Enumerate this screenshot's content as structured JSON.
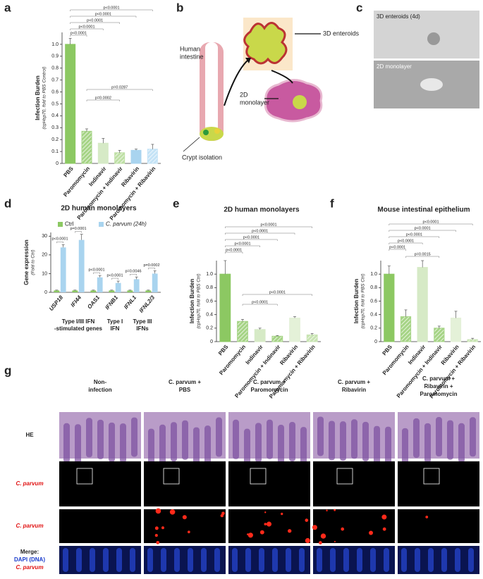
{
  "panel_letters": [
    "a",
    "b",
    "c",
    "d",
    "e",
    "f",
    "g"
  ],
  "chart_data": [
    {
      "type": "bar",
      "ylabel": "Infection Burden",
      "ylabel_sub": "(cpHsp70, fold to PBS Control)",
      "categories": [
        "PBS",
        "Paromomycin",
        "Indinavir",
        "Paromomycin + Indinavir",
        "Ribavirin",
        "Paromomycin + Ribavirin"
      ],
      "values": [
        1.0,
        0.27,
        0.17,
        0.09,
        0.11,
        0.12
      ],
      "errors": [
        0.05,
        0.02,
        0.04,
        0.02,
        0.01,
        0.04
      ],
      "colors": [
        "#8cc862",
        "#a6d486",
        "#d6eac6",
        "#bfe0a6",
        "#a9d4ef",
        "#c4e3f6"
      ],
      "ylim": [
        0,
        1.1
      ],
      "yticks": [
        0,
        0.1,
        0.2,
        0.3,
        0.4,
        0.5,
        0.6,
        0.7,
        0.8,
        0.9,
        {
          "value": 1,
          "label": "1.0"
        }
      ],
      "annotations": [
        "p<0.0001",
        "p<0.0001",
        "p<0.0001",
        "p<0.0001",
        "p<0.0001",
        "p=0.0002",
        "p=0.0287"
      ]
    },
    {
      "type": "grouped_bar",
      "title": "2D human monolayers",
      "ylabel": "Gene expression",
      "ylabel_sub": "(Fold to Ctrl)",
      "categories": [
        "USP18",
        "IFI44",
        "OAS1",
        "IFNB1",
        "IFNL1",
        "IFNL2/3"
      ],
      "series": [
        {
          "name": "Ctrl",
          "color": "#8cc862",
          "values": [
            1,
            1,
            1,
            1,
            1,
            1
          ],
          "errors": [
            0.2,
            0.2,
            0.2,
            0.2,
            0.2,
            0.2
          ]
        },
        {
          "name": "C. parvum (24h)",
          "color": "#a9d4ef",
          "values": [
            24,
            28,
            8,
            5,
            7,
            10
          ],
          "errors": [
            1.5,
            3,
            1,
            1,
            1.2,
            1.5
          ]
        }
      ],
      "ylim": [
        0,
        32
      ],
      "yticks": [
        0,
        10,
        20,
        30
      ],
      "annotations": [
        "p<0.0001",
        "p=0.0001",
        "p<0.0001",
        "p<0.0001",
        "p=0.0046",
        "p=0.0002"
      ],
      "groups": [
        [
          "Type I/III IFN",
          "-stimulated genes"
        ],
        [
          "Type I",
          "IFN"
        ],
        [
          "Type III",
          "IFNs"
        ]
      ]
    },
    {
      "type": "bar",
      "title": "2D human monolayers",
      "ylabel": "Infection Burden",
      "ylabel_sub": "(cpHsp70, fold to PBS Ctrl)",
      "categories": [
        "PBS",
        "Paromomycin",
        "Indinavir",
        "Paromomycin + Indinavir",
        "Ribavirin",
        "Paromomycin + Ribavirin"
      ],
      "values": [
        1.0,
        0.3,
        0.18,
        0.08,
        0.35,
        0.1
      ],
      "errors": [
        0.2,
        0.03,
        0.02,
        0.01,
        0.02,
        0.02
      ],
      "colors": [
        "#8cc862",
        "#a6d486",
        "#d6eac6",
        "#a6d486",
        "#e4f1d8",
        "#c8e4b2"
      ],
      "ylim": [
        0,
        1.2
      ],
      "yticks": [
        0,
        0.2,
        0.4,
        0.6,
        0.8,
        {
          "value": 1,
          "label": "1.0"
        }
      ],
      "annotations": [
        "p<0.0001",
        "p<0.0001",
        "p<0.0001",
        "p<0.0001",
        "p<0.0001",
        "p<0.0001",
        "p<0.0001"
      ]
    },
    {
      "type": "bar",
      "title": "Mouse intestinal epithelium",
      "ylabel": "Infection Burden",
      "ylabel_sub": "(cpHsp70, fold to PBS Ctrl)",
      "categories": [
        "PBS",
        "Paromomycin",
        "Indinavir",
        "Paromomycin + Indinavir",
        "Ribavirin",
        "Paromomycin + Ribavirin"
      ],
      "values": [
        1.0,
        0.37,
        1.1,
        0.2,
        0.35,
        0.03
      ],
      "errors": [
        0.12,
        0.1,
        0.1,
        0.03,
        0.1,
        0.02
      ],
      "colors": [
        "#8cc862",
        "#a6d486",
        "#d6eac6",
        "#a6d486",
        "#e4f1d8",
        "#c8e4b2"
      ],
      "ylim": [
        0,
        1.2
      ],
      "yticks": [
        0,
        0.2,
        0.4,
        0.6,
        0.8,
        {
          "value": 1,
          "label": "1.0"
        }
      ],
      "annotations": [
        "p<0.0001",
        "p<0.0001",
        "p<0.0001",
        "p<0.0001",
        "p<0.0001",
        "p=0.0015"
      ]
    }
  ],
  "panel_b": {
    "intestine": [
      "Human",
      "intestine"
    ],
    "crypt": "Crypt isolation",
    "enteroids": "3D enteroids",
    "monolayer": [
      "2D",
      "monolayer"
    ]
  },
  "panel_c": {
    "top": "3D enteroids (4d)",
    "bottom": "2D monolayer"
  },
  "panel_g": {
    "columns": [
      [
        "Non-",
        "infection"
      ],
      [
        "C. parvum +",
        "PBS"
      ],
      [
        "C. parvum +",
        "Paromomycin"
      ],
      [
        "C. parvum +",
        "Ribavirin"
      ],
      [
        "C. parvum +",
        "Ribavirin +",
        "Paromomycin"
      ]
    ],
    "rows": [
      [
        "HE"
      ],
      [
        "C. parvum"
      ],
      [
        "C. parvum"
      ],
      [
        "Merge:",
        "DAPI (DNA)",
        "C. parvum"
      ]
    ]
  }
}
